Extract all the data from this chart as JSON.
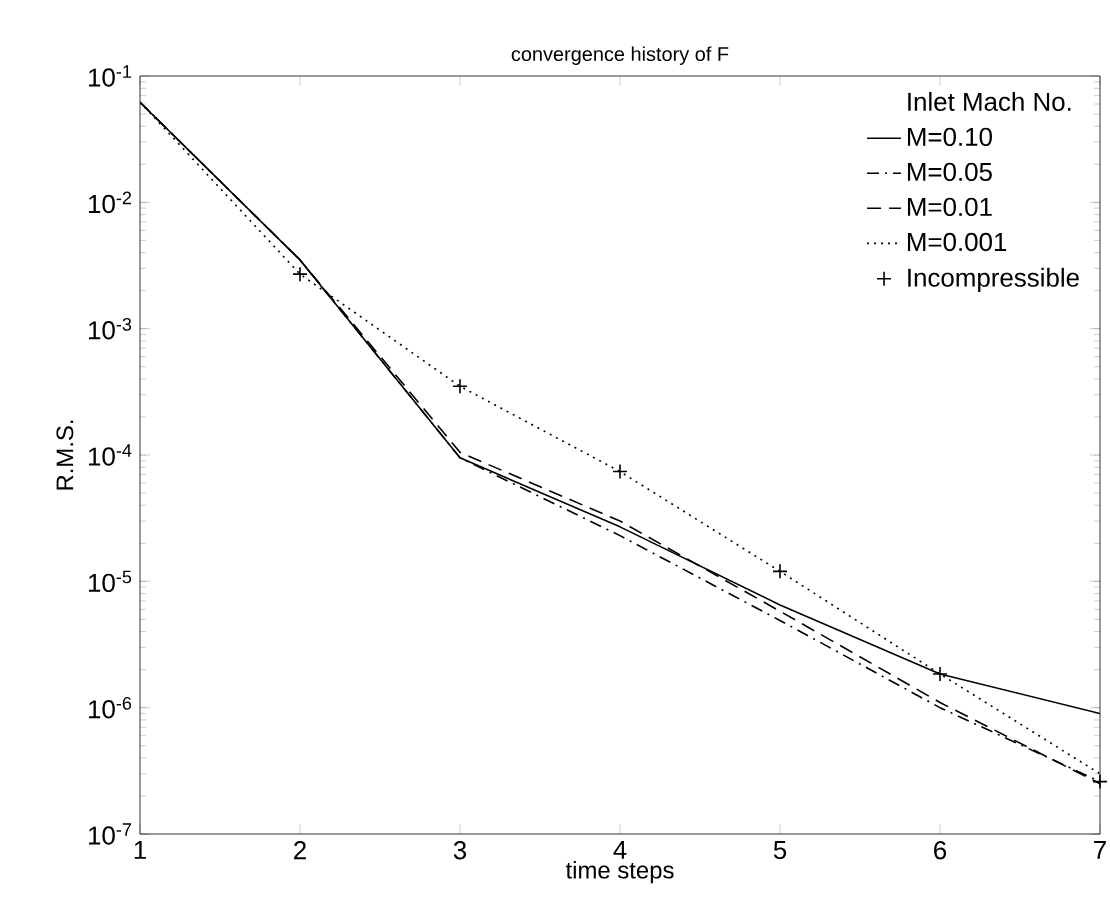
{
  "chart_data": {
    "type": "line",
    "title": "convergence history of F",
    "xlabel": "time steps",
    "ylabel": "R.M.S.",
    "legend_title": "Inlet Mach No.",
    "legend": "top right",
    "log": "y",
    "grid": false,
    "x": [
      1,
      2,
      3,
      4,
      5,
      6,
      7
    ],
    "xlim": [
      1,
      7
    ],
    "xticks": [
      1,
      2,
      3,
      4,
      5,
      6,
      7
    ],
    "ylim": [
      1e-07,
      0.1
    ],
    "yticks": [
      {
        "value": 1e-07,
        "label": "10$^{-7}$"
      },
      {
        "value": 1e-06,
        "label": "10$^{-6}$"
      },
      {
        "value": 1e-05,
        "label": "10$^{-5}$"
      },
      {
        "value": 0.0001,
        "label": "10$^{-4}$"
      },
      {
        "value": 0.001,
        "label": "10$^{-3}$"
      },
      {
        "value": 0.01,
        "label": "10$^{-2}$"
      },
      {
        "value": 0.1,
        "label": "10$^{-1}$"
      }
    ],
    "series": [
      {
        "name": "M=0.10",
        "color": "#000000",
        "line_style": "solid",
        "values": [
          0.062,
          0.0035,
          9.5e-05,
          2.7e-05,
          6.5e-06,
          1.85e-06,
          9e-07
        ]
      },
      {
        "name": "M=0.05",
        "color": "#000000",
        "line_style": "dashdot",
        "values": [
          0.062,
          0.0035,
          9.5e-05,
          2.3e-05,
          4.9e-06,
          1e-06,
          2.6e-07
        ]
      },
      {
        "name": "M=0.01",
        "color": "#000000",
        "line_style": "dashed",
        "values": [
          0.062,
          0.0035,
          0.000105,
          3e-05,
          5.8e-06,
          1.1e-06,
          2.5e-07
        ]
      },
      {
        "name": "M=0.001",
        "color": "#000000",
        "line_style": "dotted",
        "values": [
          0.062,
          0.0027,
          0.00035,
          7.4e-05,
          1.2e-05,
          1.85e-06,
          3e-07
        ]
      },
      {
        "name": "Incompressible",
        "type": "scatter",
        "marker": "cross",
        "color": "#000000",
        "values": [
          null,
          0.0027,
          0.00035,
          7.4e-05,
          1.2e-05,
          1.85e-06,
          2.6e-07
        ]
      }
    ]
  }
}
